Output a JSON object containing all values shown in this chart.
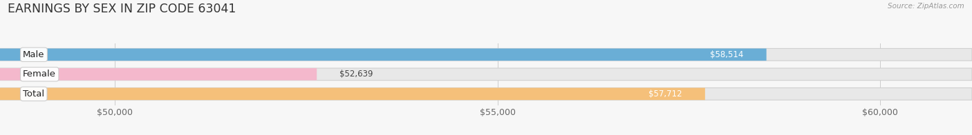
{
  "title": "EARNINGS BY SEX IN ZIP CODE 63041",
  "source": "Source: ZipAtlas.com",
  "categories": [
    "Male",
    "Female",
    "Total"
  ],
  "values": [
    58514,
    52639,
    57712
  ],
  "bar_colors": [
    "#6aaed6",
    "#f4b8cc",
    "#f5c07a"
  ],
  "value_labels": [
    "$58,514",
    "$52,639",
    "$57,712"
  ],
  "xmin": 48500,
  "xmax": 61200,
  "xticks": [
    50000,
    55000,
    60000
  ],
  "xtick_labels": [
    "$50,000",
    "$55,000",
    "$60,000"
  ],
  "background_color": "#f7f7f7",
  "bar_bg_color": "#e8e8e8",
  "title_fontsize": 12.5,
  "tick_fontsize": 9,
  "bar_height": 0.62,
  "source_fontsize": 7.5
}
